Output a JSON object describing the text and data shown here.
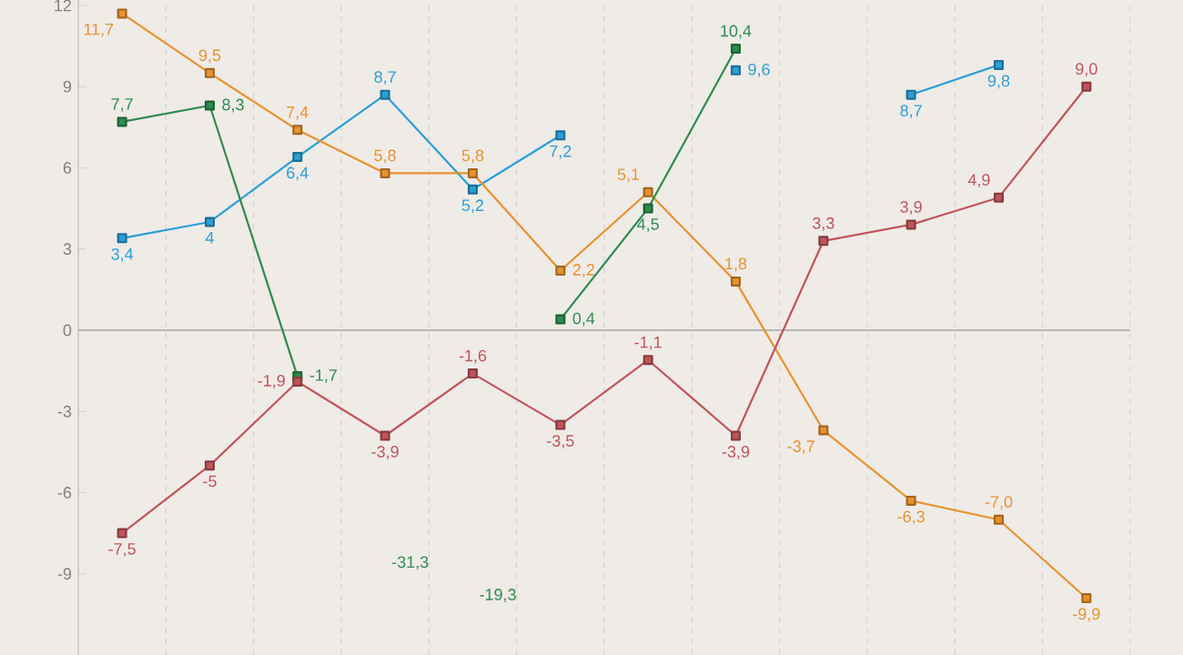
{
  "chart_data": {
    "type": "line",
    "categories": [
      null,
      null,
      null,
      null,
      null,
      null,
      null,
      null,
      null,
      null,
      null,
      null
    ],
    "series": [
      {
        "color": "#2a9fd6",
        "values": [
          3.4,
          4,
          6.4,
          8.7,
          5.2,
          7.2,
          null,
          9.6,
          null,
          8.7,
          9.8,
          null
        ],
        "value_labels": [
          "3,4",
          "4",
          "6,4",
          "8,7",
          "5,2",
          "7,2",
          null,
          "9,6",
          null,
          "8,7",
          "9,8",
          null
        ]
      },
      {
        "color": "#e8922e",
        "values": [
          11.7,
          9.5,
          7.4,
          5.8,
          5.8,
          2.2,
          5.1,
          1.8,
          -3.7,
          -6.3,
          -7.0,
          -9.9
        ],
        "value_labels": [
          "11,7",
          "9,5",
          "7,4",
          "5,8",
          "5,8",
          "2,2",
          "5,1",
          "1,8",
          "-3,7",
          "-6,3",
          "-7,0",
          "-9,9"
        ]
      },
      {
        "color": "#2e8b4e",
        "values": [
          7.7,
          8.3,
          -1.7,
          null,
          null,
          0.4,
          4.5,
          10.4,
          null,
          null,
          null,
          null
        ],
        "value_labels": [
          "7,7",
          "8,3",
          "-1,7",
          "-31,3",
          "-19,3",
          "0,4",
          "4,5",
          "10,4",
          null,
          null,
          null,
          null
        ]
      },
      {
        "color": "#c0555a",
        "values": [
          -7.5,
          -5,
          -1.9,
          -3.9,
          -1.6,
          -3.5,
          -1.1,
          -3.9,
          3.3,
          3.9,
          4.9,
          9.0
        ],
        "value_labels": [
          "-7,5",
          "-5",
          "-1,9",
          "-3,9",
          "-1,6",
          "-3,5",
          "-1,1",
          "-3,9",
          "3,3",
          "3,9",
          "4,9",
          "9,0"
        ]
      }
    ],
    "ylim": [
      -12,
      12.2
    ],
    "yticks": [
      -9,
      -6,
      -3,
      0,
      3,
      6,
      9,
      12
    ],
    "grid": "x",
    "tick_labels": "y",
    "marker": "square",
    "line_style": "solid"
  }
}
